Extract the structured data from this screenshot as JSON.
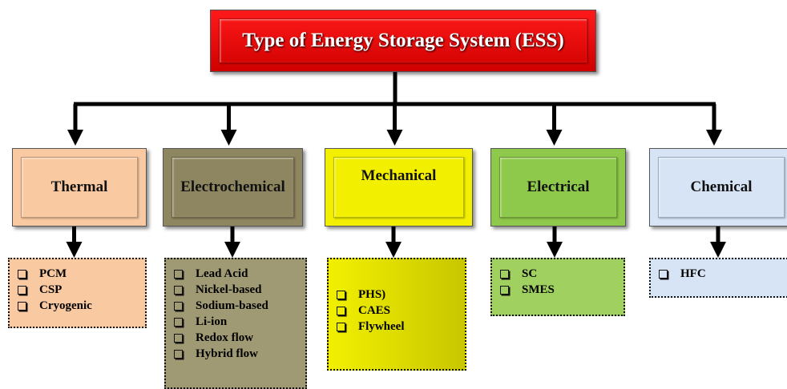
{
  "title": "Type of Energy Storage System (ESS)",
  "categories": [
    {
      "label": "Thermal",
      "items": [
        "PCM",
        "CSP",
        "Cryogenic"
      ]
    },
    {
      "label": "Electrochemical",
      "items": [
        "Lead Acid",
        "Nickel-based",
        "Sodium-based",
        "Li-ion",
        "Redox flow",
        "Hybrid flow"
      ]
    },
    {
      "label": "Mechanical",
      "items": [
        "PHS)",
        "CAES",
        "Flywheel"
      ]
    },
    {
      "label": "Electrical",
      "items": [
        "SC",
        "SMES"
      ]
    },
    {
      "label": "Chemical",
      "items": [
        "HFC"
      ]
    }
  ]
}
